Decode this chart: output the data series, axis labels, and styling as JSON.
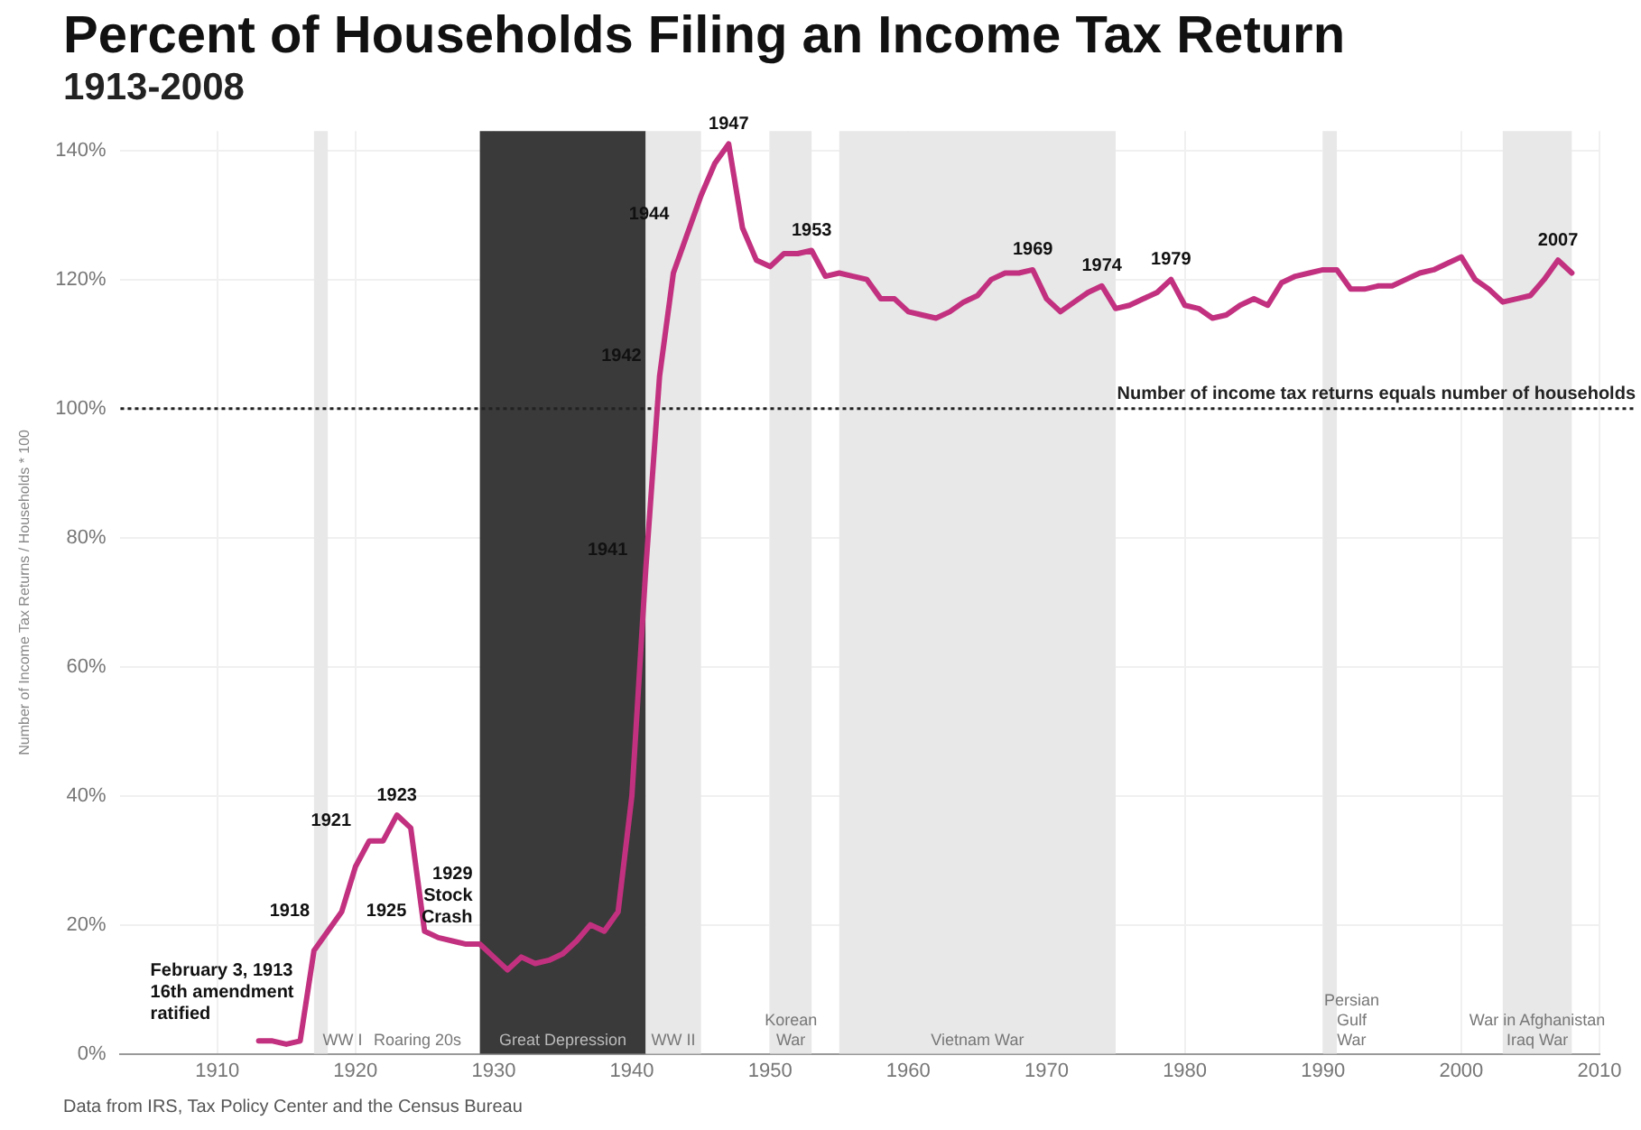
{
  "chart_data": {
    "type": "line",
    "title": "Percent of Households Filing an Income Tax Return",
    "subtitle": "1913-2008",
    "ylabel": "Number of Income Tax Returns / Households * 100",
    "x": [
      1913,
      1914,
      1915,
      1916,
      1917,
      1918,
      1919,
      1920,
      1921,
      1922,
      1923,
      1924,
      1925,
      1926,
      1927,
      1928,
      1929,
      1930,
      1931,
      1932,
      1933,
      1934,
      1935,
      1936,
      1937,
      1938,
      1939,
      1940,
      1941,
      1942,
      1943,
      1944,
      1945,
      1946,
      1947,
      1948,
      1949,
      1950,
      1951,
      1952,
      1953,
      1954,
      1955,
      1956,
      1957,
      1958,
      1959,
      1960,
      1961,
      1962,
      1963,
      1964,
      1965,
      1966,
      1967,
      1968,
      1969,
      1970,
      1971,
      1972,
      1973,
      1974,
      1975,
      1976,
      1977,
      1978,
      1979,
      1980,
      1981,
      1982,
      1983,
      1984,
      1985,
      1986,
      1987,
      1988,
      1989,
      1990,
      1991,
      1992,
      1993,
      1994,
      1995,
      1996,
      1997,
      1998,
      1999,
      2000,
      2001,
      2002,
      2003,
      2004,
      2005,
      2006,
      2007,
      2008
    ],
    "series": [
      {
        "color": "#c2317f",
        "values": [
          2,
          2,
          1.5,
          2,
          16,
          19,
          22,
          29,
          33,
          33,
          37,
          35,
          19,
          18,
          17.5,
          17,
          17,
          15,
          13,
          15,
          14,
          14.5,
          15.5,
          17.5,
          20,
          19,
          22,
          40,
          75,
          105,
          121,
          127,
          133,
          138,
          141,
          128,
          123,
          122,
          124,
          124,
          124.5,
          120.5,
          121,
          120.5,
          120,
          117,
          117,
          115,
          114.5,
          114,
          115,
          116.5,
          117.5,
          120,
          121,
          121,
          121.5,
          117,
          115,
          116.5,
          118,
          119,
          115.5,
          116,
          117,
          118,
          120,
          116,
          115.5,
          114,
          114.5,
          116,
          117,
          116,
          119.5,
          120.5,
          121,
          121.5,
          121.5,
          118.5,
          118.5,
          119,
          119,
          120,
          121,
          121.5,
          122.5,
          123.5,
          120,
          118.5,
          116.5,
          117,
          117.5,
          120,
          123,
          121
        ]
      }
    ],
    "xlim": [
      1903,
      2010
    ],
    "xticks": [
      1910,
      1920,
      1930,
      1940,
      1950,
      1960,
      1970,
      1980,
      1990,
      2000,
      2010
    ],
    "ylim": [
      0,
      143
    ],
    "yticks": [
      {
        "value": 0,
        "label": "0%"
      },
      {
        "value": 20,
        "label": "20%"
      },
      {
        "value": 40,
        "label": "40%"
      },
      {
        "value": 60,
        "label": "60%"
      },
      {
        "value": 80,
        "label": "80%"
      },
      {
        "value": 100,
        "label": "100%"
      },
      {
        "value": 120,
        "label": "120%"
      },
      {
        "value": 140,
        "label": "140%"
      }
    ],
    "grid": true,
    "marker": "none",
    "line_style": "solid",
    "ref_lines": [
      {
        "axis": "y",
        "value": 100,
        "label": "Number of income tax returns equals number of households",
        "color": "#222222",
        "line_style": "dotted"
      }
    ],
    "bands": [
      {
        "axis": "x",
        "from": 1917,
        "to": 1918,
        "label": "WW I",
        "color": "#e8e8e8"
      },
      {
        "axis": "x",
        "from": 1929,
        "to": 1941,
        "label": "Great Depression",
        "color": "#3a3a3a"
      },
      {
        "axis": "x",
        "from": 1941,
        "to": 1945,
        "label": "WW II",
        "color": "#e8e8e8"
      },
      {
        "axis": "x",
        "from": 1950,
        "to": 1953,
        "label": "Korean\nWar",
        "color": "#e8e8e8"
      },
      {
        "axis": "x",
        "from": 1955,
        "to": 1975,
        "label": "Vietnam War",
        "color": "#e8e8e8"
      },
      {
        "axis": "x",
        "from": 1990,
        "to": 1991,
        "label": "Persian\nGulf\nWar",
        "color": "#e8e8e8"
      },
      {
        "axis": "x",
        "from": 2003,
        "to": 2008,
        "label": "War in Afghanistan\nIraq War",
        "color": "#e8e8e8"
      }
    ],
    "annotations": [
      {
        "text": "February 3, 1913\n16th amendment\nratified",
        "x": 1913,
        "y": 2
      },
      {
        "text": "1918",
        "x": 1918,
        "y": 19
      },
      {
        "text": "1921",
        "x": 1921,
        "y": 33
      },
      {
        "text": "1923",
        "x": 1923,
        "y": 37
      },
      {
        "text": "1925",
        "x": 1925,
        "y": 19
      },
      {
        "text": "1929\nStock\nCrash",
        "x": 1929,
        "y": 17
      },
      {
        "text": "1941",
        "x": 1941,
        "y": 75
      },
      {
        "text": "1942",
        "x": 1942,
        "y": 105
      },
      {
        "text": "1944",
        "x": 1944,
        "y": 127
      },
      {
        "text": "1947",
        "x": 1947,
        "y": 141
      },
      {
        "text": "1953",
        "x": 1953,
        "y": 124.5
      },
      {
        "text": "1969",
        "x": 1969,
        "y": 121.5
      },
      {
        "text": "1974",
        "x": 1974,
        "y": 119
      },
      {
        "text": "1979",
        "x": 1979,
        "y": 120
      },
      {
        "text": "2007",
        "x": 2007,
        "y": 123
      },
      "Roaring 20s",
      "Data from IRS, Tax Policy Center and the Census Bureau"
    ]
  }
}
